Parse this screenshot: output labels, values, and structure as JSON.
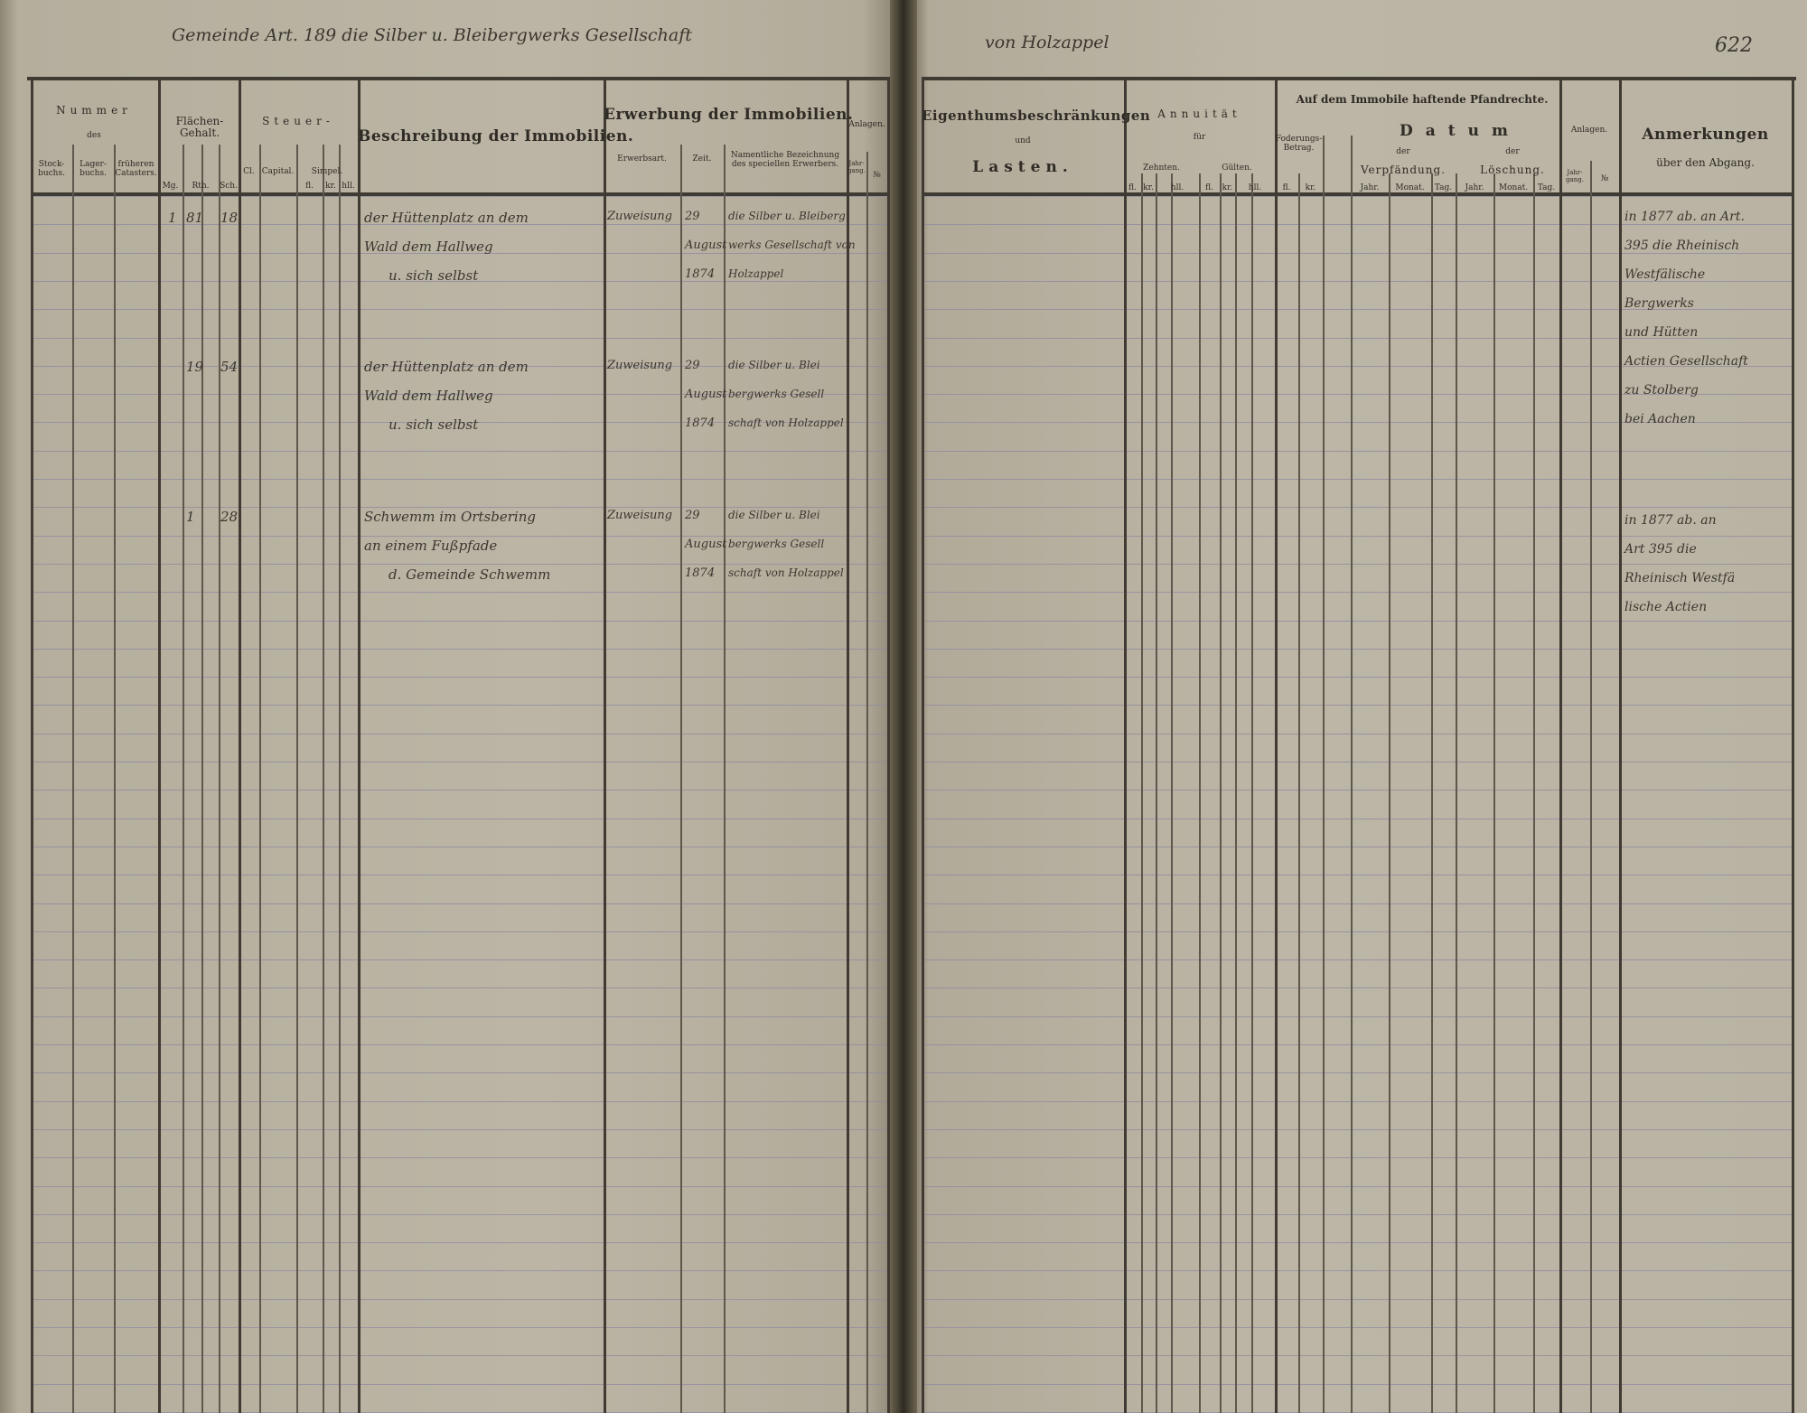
{
  "running_head": {
    "left": "Gemeinde Art. 189 die Silber u. Bleibergwerks Gesellschaft",
    "right": "von Holzappel",
    "page_number": "622"
  },
  "left_headers": {
    "nummer": "Nummer",
    "des": "des",
    "stockbuchs": "Stock-buchs.",
    "lagerbuchs": "Lager-buchs.",
    "frueheren_catasters": "früheren Catasters.",
    "flaechen_gehalt": "Flächen-Gehalt.",
    "mg": "Mg.",
    "rth": "Rth.",
    "sch": "Sch.",
    "steuer": "Steuer-",
    "cl": "Cl.",
    "capital": "Capital.",
    "simpel": "Simpel.",
    "fl": "fl.",
    "kr": "kr.",
    "hll": "hll.",
    "beschreibung": "Beschreibung der Immobilien.",
    "erwerbung": "Erwerbung der Immobilien.",
    "erwerbsart": "Erwerbsart.",
    "zeit": "Zeit.",
    "namentliche": "Namentliche Bezeichnung des speciellen Erwerbers.",
    "anlagen": "Anlagen.",
    "jahrgang": "Jahr-gang.",
    "nr": "№"
  },
  "right_headers": {
    "eigenthum": "Eigenthumsbeschränkungen",
    "und": "und",
    "lasten": "Lasten.",
    "annuitaet": "Annuität",
    "fuer": "für",
    "zehnten": "Zehnten.",
    "gueltren": "Gülten.",
    "fl": "fl.",
    "kr": "kr.",
    "hll": "hll.",
    "pfandrechte": "Auf dem Immobile haftende Pfandrechte.",
    "foderungs": "Foderungs-Betrag.",
    "datum": "Datum",
    "der": "der",
    "verpfaendung": "Verpfändung.",
    "loeschung": "Löschung.",
    "jahr": "Jahr.",
    "monat": "Monat.",
    "tag": "Tag.",
    "anlagen": "Anlagen.",
    "jahrgang": "Jahr-gang.",
    "nr": "№",
    "anmerkungen": "Anmerkungen",
    "ueber_abgang": "über den Abgang."
  },
  "entries": [
    {
      "mg": "1",
      "rth": "81",
      "sch": "18",
      "description": [
        "der Hüttenplatz an dem",
        "Wald dem Hallweg",
        "u. sich selbst"
      ],
      "erwerbsart": "Zuweisung",
      "zeit": [
        "29",
        "August",
        "1874"
      ],
      "erwerber": [
        "die Silber u. Bleiberg",
        "werks Gesellschaft von",
        "Holzappel"
      ]
    },
    {
      "mg": "",
      "rth": "19",
      "sch": "54",
      "description": [
        "der Hüttenplatz an dem",
        "Wald dem Hallweg",
        "u. sich selbst"
      ],
      "erwerbsart": "Zuweisung",
      "zeit": [
        "29",
        "August",
        "1874"
      ],
      "erwerber": [
        "die Silber u. Blei",
        "bergwerks Gesell",
        "schaft von Holzappel"
      ]
    },
    {
      "mg": "",
      "rth": "1",
      "sch": "28",
      "description": [
        "Schwemm im Ortsbering",
        "an einem Fußpfade",
        "d. Gemeinde Schwemm"
      ],
      "erwerbsart": "Zuweisung",
      "zeit": [
        "29",
        "August",
        "1874"
      ],
      "erwerber": [
        "die Silber u. Blei",
        "bergwerks Gesell",
        "schaft von Holzappel"
      ]
    }
  ],
  "anmerkungen": [
    [
      "in 1877 ab. an Art.",
      "395 die Rheinisch",
      "Westfälische",
      "Bergwerks",
      "und Hütten",
      "Actien Gesellschaft",
      "zu Stolberg",
      "bei Aachen"
    ],
    [
      "in 1877 ab. an",
      "Art 395 die",
      "Rheinisch Westfä",
      "lische Actien"
    ]
  ],
  "colors": {
    "paper": "#bab3a3",
    "ink_print": "#2f2b25",
    "ink_hand": "#3b372f",
    "ruling": "#8c8aa0"
  }
}
